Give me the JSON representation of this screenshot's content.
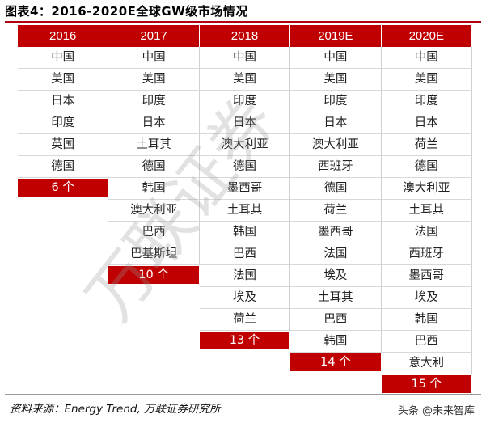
{
  "title": "图表4：2016-2020E全球GW级市场情况",
  "table": {
    "columns": [
      {
        "year": "2016",
        "markets": [
          "中国",
          "美国",
          "日本",
          "印度",
          "英国",
          "德国"
        ],
        "count": "6 个"
      },
      {
        "year": "2017",
        "markets": [
          "中国",
          "美国",
          "印度",
          "日本",
          "土耳其",
          "德国",
          "韩国",
          "澳大利亚",
          "巴西",
          "巴基斯坦"
        ],
        "count": "10 个"
      },
      {
        "year": "2018",
        "markets": [
          "中国",
          "美国",
          "印度",
          "日本",
          "澳大利亚",
          "德国",
          "墨西哥",
          "土耳其",
          "韩国",
          "巴西",
          "法国",
          "埃及",
          "荷兰"
        ],
        "count": "13 个"
      },
      {
        "year": "2019E",
        "markets": [
          "中国",
          "美国",
          "印度",
          "日本",
          "澳大利亚",
          "西班牙",
          "德国",
          "荷兰",
          "墨西哥",
          "法国",
          "埃及",
          "土耳其",
          "巴西",
          "韩国"
        ],
        "count": "14 个"
      },
      {
        "year": "2020E",
        "markets": [
          "中国",
          "美国",
          "印度",
          "日本",
          "荷兰",
          "德国",
          "澳大利亚",
          "土耳其",
          "法国",
          "西班牙",
          "墨西哥",
          "埃及",
          "韩国",
          "巴西",
          "意大利"
        ],
        "count": "15 个"
      }
    ]
  },
  "source": "资料来源：Energy Trend, 万联证券研究所",
  "badge": "头条 @未来智库",
  "watermark": "万联证券",
  "colors": {
    "header": "#c00000",
    "accent": "#b00010"
  }
}
